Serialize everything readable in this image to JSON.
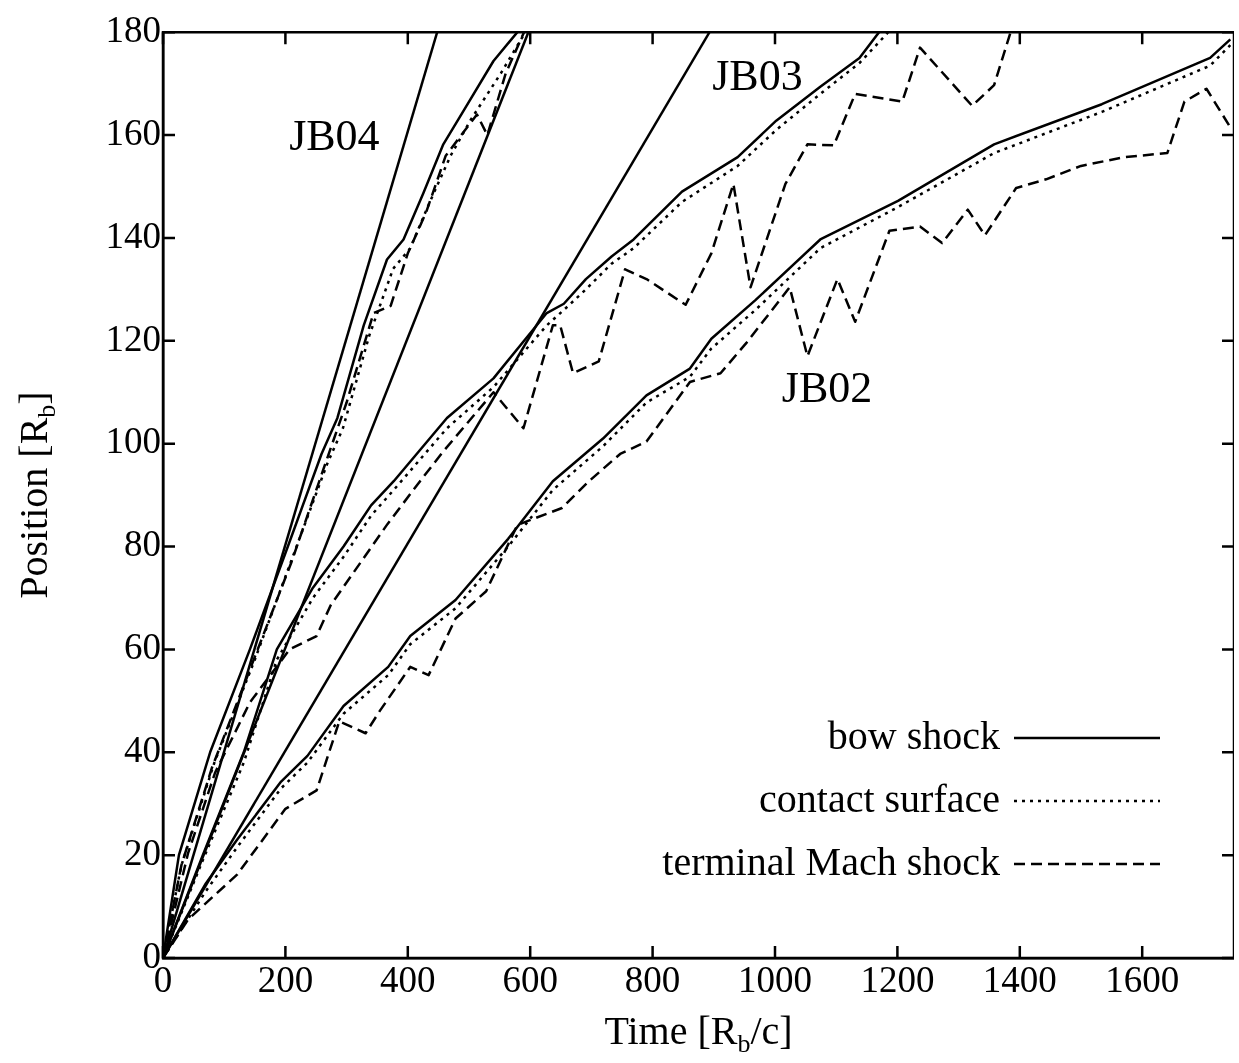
{
  "chart_data": {
    "type": "line",
    "xlabel": "Time [R$_{b}$/c]",
    "ylabel": "Position [R$_{b}$]",
    "xlim": [
      0,
      1750
    ],
    "ylim": [
      0,
      180
    ],
    "xticks": [
      0,
      200,
      400,
      600,
      800,
      1000,
      1200,
      1400,
      1600
    ],
    "yticks": [
      0,
      20,
      40,
      60,
      80,
      100,
      120,
      140,
      160,
      180
    ],
    "legend": "bottom right",
    "annotations": [
      "JB04",
      "JB03",
      "JB02"
    ],
    "series": [
      {
        "name": "bow shock",
        "color": "#000000",
        "line_style": "solid",
        "x": [
          0,
          70,
          121,
          193,
          236,
          295,
          368,
          404,
          478,
          564,
          637,
          719,
          790,
          861,
          896,
          968,
          1074,
          1201,
          1358,
          1534,
          1711,
          1744
        ],
        "values": [
          0,
          14.5,
          23,
          34.3,
          39.3,
          49,
          56.6,
          62.6,
          69.6,
          81.5,
          92.7,
          101,
          109.4,
          114.6,
          120.4,
          127.9,
          139.7,
          147.2,
          158.2,
          166,
          175,
          178.6
        ]
      },
      {
        "name": "contact surface",
        "color": "#000000",
        "line_style": "dotted",
        "x": [
          0,
          70,
          121,
          193,
          236,
          295,
          368,
          404,
          478,
          564,
          637,
          719,
          790,
          861,
          896,
          968,
          1074,
          1201,
          1358,
          1534,
          1711,
          1744
        ],
        "values": [
          0,
          13,
          21.5,
          33,
          38,
          47.5,
          55,
          61,
          68,
          80,
          91,
          99.5,
          108,
          113,
          118.5,
          126,
          138,
          146,
          156.5,
          164.5,
          173.5,
          177.5
        ]
      },
      {
        "name": "terminal Mach shock",
        "color": "#000000",
        "line_style": "dashed",
        "x": [
          0,
          41,
          121,
          200,
          251,
          288,
          331,
          354,
          404,
          434,
          478,
          528,
          579,
          652,
          696,
          747,
          790,
          861,
          911,
          954,
          1024,
          1053,
          1102,
          1131,
          1187,
          1237,
          1273,
          1315,
          1343,
          1394,
          1443,
          1500,
          1570,
          1641,
          1669,
          1705,
          1744
        ],
        "values": [
          0,
          7.5,
          16.2,
          29,
          32.6,
          46,
          43.7,
          48,
          56.6,
          55,
          66,
          71.3,
          84.2,
          87.5,
          92.7,
          98,
          100.4,
          112,
          113.7,
          119.7,
          130.4,
          117,
          132,
          123.7,
          141.4,
          142.2,
          139,
          145.5,
          140.5,
          149.7,
          151.4,
          154,
          155.7,
          156.5,
          166.5,
          169,
          161.5
        ]
      },
      {
        "color": "#000000",
        "line_style": "solid",
        "x": [
          0,
          65,
          132,
          186,
          245,
          295,
          340,
          377,
          464,
          540,
          627,
          655,
          691,
          733,
          769,
          848,
          939,
          1002,
          1074,
          1138,
          1170
        ],
        "values": [
          0,
          20,
          40,
          60,
          72,
          80,
          88,
          92.7,
          105,
          112.7,
          125.4,
          127.2,
          132,
          136.4,
          139.7,
          149,
          155.7,
          162.8,
          169.4,
          175,
          180
        ]
      },
      {
        "color": "#000000",
        "line_style": "dotted",
        "x": [
          0,
          65,
          132,
          186,
          245,
          295,
          340,
          377,
          464,
          540,
          627,
          655,
          691,
          733,
          769,
          848,
          939,
          1002,
          1074,
          1138,
          1185
        ],
        "values": [
          0,
          19,
          38,
          58,
          70,
          78,
          86,
          91,
          103,
          111,
          123,
          126,
          130,
          135,
          138,
          147,
          154,
          161,
          168,
          174,
          180
        ]
      },
      {
        "color": "#000000",
        "line_style": "dashed",
        "x": [
          0,
          41,
          85,
          142,
          207,
          251,
          274,
          367,
          420,
          458,
          540,
          589,
          637,
          649,
          670,
          712,
          755,
          790,
          854,
          896,
          932,
          960,
          1017,
          1053,
          1096,
          1131,
          1208,
          1237,
          1322,
          1358,
          1385
        ],
        "values": [
          0,
          20.4,
          36,
          49.7,
          60,
          62.6,
          68.6,
          84.4,
          92.7,
          98.5,
          110,
          103,
          123,
          123,
          113.7,
          116,
          133.9,
          132,
          127,
          137,
          150.5,
          130.4,
          150.5,
          158.2,
          158,
          168,
          166.5,
          177,
          165.7,
          169.7,
          180
        ]
      },
      {
        "color": "#000000",
        "line_style": "solid",
        "x": [
          0,
          26,
          77,
          142,
          204,
          259,
          285,
          328,
          366,
          393,
          425,
          458,
          491,
          540,
          579
        ],
        "values": [
          0,
          20,
          40,
          60,
          80,
          98,
          105,
          123,
          135.8,
          139.7,
          148.6,
          158.2,
          164.7,
          174.4,
          180
        ]
      },
      {
        "color": "#000000",
        "line_style": "dotted",
        "x": [
          0,
          30,
          84,
          150,
          212,
          268,
          294,
          337,
          376,
          404,
          436,
          470,
          503,
          552,
          592
        ],
        "values": [
          0,
          18,
          38,
          58,
          78,
          96,
          103,
          121,
          134,
          138,
          147,
          156,
          163,
          172,
          180
        ]
      },
      {
        "color": "#000000",
        "line_style": "dashed",
        "x": [
          0,
          30,
          80,
          145,
          210,
          262,
          300,
          344,
          372,
          400,
          430,
          462,
          513,
          530,
          560,
          590
        ],
        "values": [
          0,
          18,
          37,
          57,
          77,
          95,
          108,
          125.4,
          126.8,
          137,
          145,
          156,
          164,
          160,
          172,
          180
        ]
      },
      {
        "color": "#000000",
        "line_style": "solid",
        "x": [
          0,
          448
        ],
        "values": [
          0,
          180
        ]
      },
      {
        "color": "#000000",
        "line_style": "solid",
        "x": [
          0,
          597
        ],
        "values": [
          0,
          180
        ]
      },
      {
        "color": "#000000",
        "line_style": "solid",
        "x": [
          0,
          893
        ],
        "values": [
          0,
          180
        ]
      }
    ]
  }
}
